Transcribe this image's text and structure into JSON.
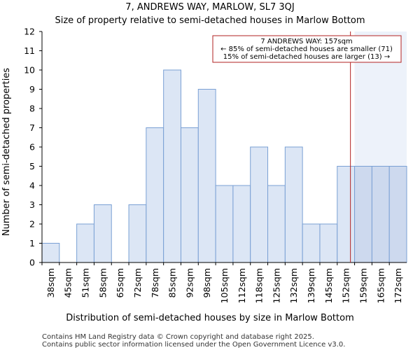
{
  "header": {
    "title_line1": "7, ANDREWS WAY, MARLOW, SL7 3QJ",
    "title_line2": "Size of property relative to semi-detached houses in Marlow Bottom"
  },
  "footer": {
    "line1": "Contains HM Land Registry data © Crown copyright and database right 2025.",
    "line2": "Contains public sector information licensed under the Open Government Licence v3.0."
  },
  "annotation": {
    "line1": "7 ANDREWS WAY: 157sqm",
    "line2": "← 85% of semi-detached houses are smaller (71)",
    "line3": "15% of semi-detached houses are larger (13) →"
  },
  "colors": {
    "bar_fill": "#dce6f5",
    "bar_fill_highlight": "#cdd9ee",
    "bar_stroke": "#7aa0d4",
    "marker_line": "#b22222",
    "highlight_region": "#edf2fa",
    "annot_border": "#b22222"
  },
  "chart_data": {
    "type": "bar",
    "title": "Size of property relative to semi-detached houses in Marlow Bottom",
    "xlabel": "Distribution of semi-detached houses by size in Marlow Bottom",
    "ylabel": "Number of semi-detached properties",
    "categories": [
      "38sqm",
      "45sqm",
      "51sqm",
      "58sqm",
      "65sqm",
      "72sqm",
      "78sqm",
      "85sqm",
      "92sqm",
      "98sqm",
      "105sqm",
      "112sqm",
      "118sqm",
      "125sqm",
      "132sqm",
      "139sqm",
      "145sqm",
      "152sqm",
      "159sqm",
      "165sqm",
      "172sqm"
    ],
    "values": [
      1,
      0,
      2,
      3,
      0,
      3,
      7,
      10,
      7,
      9,
      4,
      4,
      6,
      4,
      6,
      2,
      2,
      5,
      5,
      5,
      5
    ],
    "ylim": [
      0,
      12
    ],
    "yticks": [
      0,
      1,
      2,
      3,
      4,
      5,
      6,
      7,
      8,
      9,
      10,
      11,
      12
    ],
    "grid": false,
    "marker": {
      "label": "7 ANDREWS WAY",
      "value_sqm": 157
    }
  }
}
